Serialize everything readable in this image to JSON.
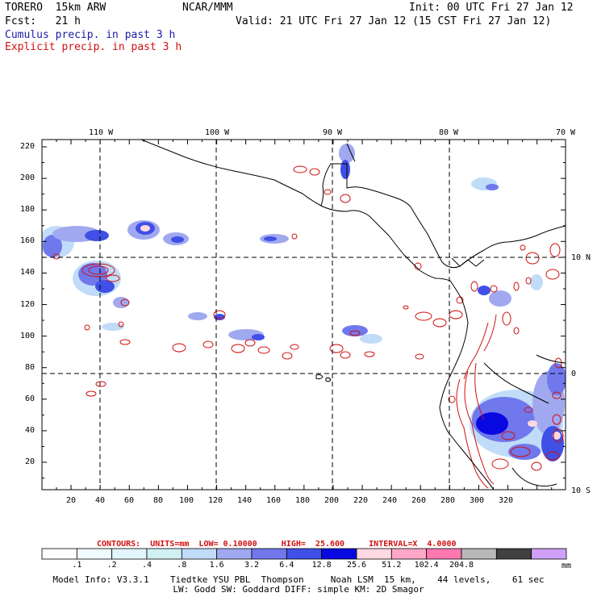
{
  "header": {
    "model": "TORERO  15km ARW",
    "org": "NCAR/MMM",
    "init": "Init: 00 UTC Fri 27 Jan 12",
    "fcst": "Fcst:   21 h",
    "valid": "Valid: 21 UTC Fri 27 Jan 12 (15 CST Fri 27 Jan 12)",
    "field1": "Cumulus precip. in past 3 h",
    "field2": "Explicit precip. in past 3 h"
  },
  "map": {
    "lon_labels": [
      "110 W",
      "100 W",
      "90 W",
      "80 W",
      "70 W"
    ],
    "lat_labels": [
      "10 N",
      "0",
      "10 S"
    ],
    "y_ticks": [
      "220",
      "200",
      "180",
      "160",
      "140",
      "120",
      "100",
      "80",
      "60",
      "40",
      "20"
    ],
    "x_ticks": [
      "20",
      "40",
      "60",
      "80",
      "100",
      "120",
      "140",
      "160",
      "180",
      "200",
      "220",
      "240",
      "260",
      "280",
      "300",
      "320"
    ]
  },
  "contours": {
    "text": "CONTOURS:  UNITS=mm  LOW= 0.10000     HIGH=  25.600     INTERVAL=X  4.0000"
  },
  "colorbar": {
    "colors": [
      "#ffffff",
      "#f0fbff",
      "#e2f5fa",
      "#d0f0f2",
      "#c0dcf8",
      "#a0a8f0",
      "#7078ec",
      "#4050e6",
      "#0808e0",
      "#ffd8e0",
      "#ffa8c8",
      "#ff78b0",
      "#b8b8b8",
      "#404040",
      "#d0a0f8"
    ],
    "labels": [
      ".1",
      ".2",
      ".4",
      ".8",
      "1.6",
      "3.2",
      "6.4",
      "12.8",
      "25.6",
      "51.2",
      "102.4",
      "204.8"
    ],
    "unit": "mm"
  },
  "footer": {
    "line1": "Model Info: V3.3.1    Tiedtke YSU PBL  Thompson     Noah LSM  15 km,    44 levels,    61 sec",
    "line2": "LW: Godd SW: Goddard DIFF: simple KM: 2D Smagor"
  }
}
